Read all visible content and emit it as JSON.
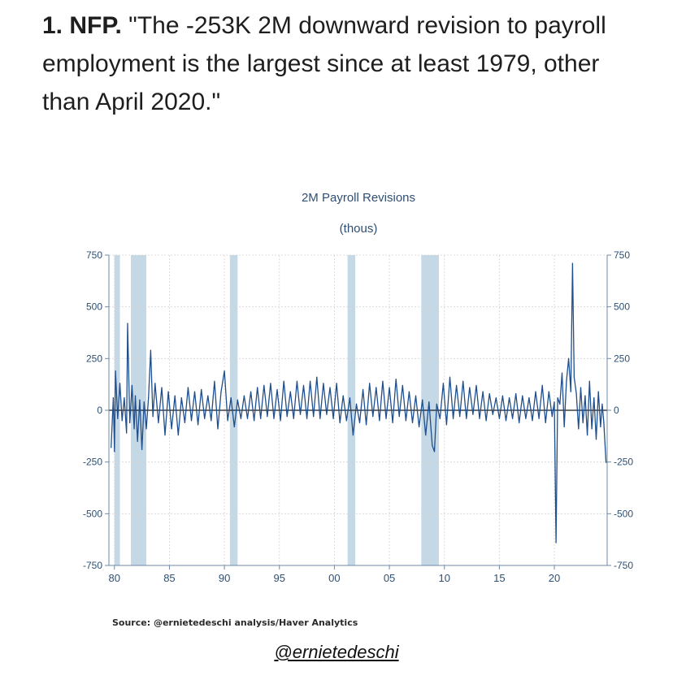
{
  "headline": {
    "bold": "1. NFP.",
    "text": "\"The -253K 2M downward revision to payroll employment is the largest since at least 1979, other than April 2020.\""
  },
  "chart_data": {
    "type": "line",
    "title": "2M Payroll Revisions",
    "subtitle": "(thous)",
    "xlabel": "",
    "ylabel": "",
    "xlim": [
      1979.5,
      2024.8
    ],
    "ylim": [
      -750,
      750
    ],
    "y_ticks": [
      750,
      500,
      250,
      0,
      -250,
      -500,
      -750
    ],
    "y_tick_labels": [
      "750",
      "500",
      "250",
      "0",
      "-250",
      "-500",
      "-750"
    ],
    "x_ticks": [
      1980,
      1985,
      1990,
      1995,
      2000,
      2005,
      2010,
      2015,
      2020
    ],
    "x_tick_labels": [
      "80",
      "85",
      "90",
      "95",
      "00",
      "05",
      "10",
      "15",
      "20"
    ],
    "recessions": [
      [
        1980.0,
        1980.5
      ],
      [
        1981.5,
        1982.9
      ],
      [
        1990.5,
        1991.2
      ],
      [
        2001.2,
        2001.9
      ],
      [
        2007.9,
        2009.5
      ]
    ],
    "series": [
      {
        "name": "2M Payroll Revisions",
        "color": "#1f4e8c",
        "points": [
          [
            1979.7,
            -180
          ],
          [
            1979.9,
            60
          ],
          [
            1980.0,
            -200
          ],
          [
            1980.1,
            190
          ],
          [
            1980.3,
            -40
          ],
          [
            1980.5,
            130
          ],
          [
            1980.7,
            -50
          ],
          [
            1980.9,
            60
          ],
          [
            1981.1,
            -110
          ],
          [
            1981.2,
            420
          ],
          [
            1981.4,
            -60
          ],
          [
            1981.6,
            120
          ],
          [
            1981.8,
            -90
          ],
          [
            1981.9,
            70
          ],
          [
            1982.1,
            -150
          ],
          [
            1982.3,
            50
          ],
          [
            1982.5,
            -190
          ],
          [
            1982.7,
            40
          ],
          [
            1982.9,
            -90
          ],
          [
            1983.1,
            60
          ],
          [
            1983.3,
            290
          ],
          [
            1983.5,
            -30
          ],
          [
            1983.7,
            130
          ],
          [
            1984.0,
            -60
          ],
          [
            1984.3,
            110
          ],
          [
            1984.6,
            -120
          ],
          [
            1984.9,
            90
          ],
          [
            1985.2,
            -90
          ],
          [
            1985.5,
            70
          ],
          [
            1985.8,
            -120
          ],
          [
            1986.1,
            60
          ],
          [
            1986.4,
            -60
          ],
          [
            1986.7,
            110
          ],
          [
            1987.0,
            -50
          ],
          [
            1987.3,
            90
          ],
          [
            1987.6,
            -70
          ],
          [
            1987.9,
            100
          ],
          [
            1988.2,
            -40
          ],
          [
            1988.5,
            70
          ],
          [
            1988.8,
            -50
          ],
          [
            1989.1,
            140
          ],
          [
            1989.4,
            -90
          ],
          [
            1989.7,
            90
          ],
          [
            1990.0,
            190
          ],
          [
            1990.3,
            -50
          ],
          [
            1990.6,
            60
          ],
          [
            1990.9,
            -80
          ],
          [
            1991.2,
            50
          ],
          [
            1991.5,
            -40
          ],
          [
            1991.8,
            70
          ],
          [
            1992.1,
            -40
          ],
          [
            1992.4,
            90
          ],
          [
            1992.7,
            -50
          ],
          [
            1993.0,
            110
          ],
          [
            1993.3,
            -40
          ],
          [
            1993.6,
            120
          ],
          [
            1993.9,
            -30
          ],
          [
            1994.2,
            130
          ],
          [
            1994.5,
            -40
          ],
          [
            1994.8,
            100
          ],
          [
            1995.1,
            -50
          ],
          [
            1995.4,
            140
          ],
          [
            1995.7,
            -30
          ],
          [
            1996.0,
            90
          ],
          [
            1996.3,
            -40
          ],
          [
            1996.6,
            140
          ],
          [
            1996.9,
            -20
          ],
          [
            1997.2,
            120
          ],
          [
            1997.5,
            -40
          ],
          [
            1997.8,
            140
          ],
          [
            1998.1,
            -30
          ],
          [
            1998.4,
            160
          ],
          [
            1998.7,
            -40
          ],
          [
            1999.0,
            130
          ],
          [
            1999.3,
            -20
          ],
          [
            1999.6,
            110
          ],
          [
            1999.9,
            -40
          ],
          [
            2000.2,
            130
          ],
          [
            2000.5,
            -60
          ],
          [
            2000.8,
            70
          ],
          [
            2001.1,
            -50
          ],
          [
            2001.4,
            60
          ],
          [
            2001.7,
            -120
          ],
          [
            2002.0,
            30
          ],
          [
            2002.3,
            -60
          ],
          [
            2002.6,
            100
          ],
          [
            2002.9,
            -70
          ],
          [
            2003.2,
            130
          ],
          [
            2003.5,
            -30
          ],
          [
            2003.8,
            110
          ],
          [
            2004.1,
            -50
          ],
          [
            2004.4,
            140
          ],
          [
            2004.7,
            -40
          ],
          [
            2005.0,
            110
          ],
          [
            2005.3,
            -60
          ],
          [
            2005.6,
            150
          ],
          [
            2005.9,
            -30
          ],
          [
            2006.2,
            120
          ],
          [
            2006.5,
            -50
          ],
          [
            2006.8,
            90
          ],
          [
            2007.1,
            -60
          ],
          [
            2007.4,
            70
          ],
          [
            2007.7,
            -80
          ],
          [
            2008.0,
            50
          ],
          [
            2008.3,
            -120
          ],
          [
            2008.6,
            40
          ],
          [
            2008.9,
            -170
          ],
          [
            2009.1,
            -200
          ],
          [
            2009.3,
            30
          ],
          [
            2009.6,
            -40
          ],
          [
            2009.9,
            130
          ],
          [
            2010.2,
            -70
          ],
          [
            2010.5,
            160
          ],
          [
            2010.8,
            -40
          ],
          [
            2011.1,
            120
          ],
          [
            2011.4,
            -30
          ],
          [
            2011.7,
            140
          ],
          [
            2012.0,
            -40
          ],
          [
            2012.3,
            110
          ],
          [
            2012.6,
            -20
          ],
          [
            2012.9,
            120
          ],
          [
            2013.2,
            -40
          ],
          [
            2013.5,
            90
          ],
          [
            2013.8,
            -50
          ],
          [
            2014.1,
            80
          ],
          [
            2014.4,
            -20
          ],
          [
            2014.7,
            60
          ],
          [
            2015.0,
            -40
          ],
          [
            2015.3,
            70
          ],
          [
            2015.6,
            -50
          ],
          [
            2015.9,
            60
          ],
          [
            2016.2,
            -40
          ],
          [
            2016.5,
            80
          ],
          [
            2016.8,
            -60
          ],
          [
            2017.1,
            70
          ],
          [
            2017.4,
            -40
          ],
          [
            2017.7,
            60
          ],
          [
            2018.0,
            -50
          ],
          [
            2018.3,
            90
          ],
          [
            2018.6,
            -40
          ],
          [
            2018.9,
            120
          ],
          [
            2019.2,
            -60
          ],
          [
            2019.5,
            90
          ],
          [
            2019.8,
            -30
          ],
          [
            2020.0,
            40
          ],
          [
            2020.15,
            -640
          ],
          [
            2020.3,
            60
          ],
          [
            2020.5,
            30
          ],
          [
            2020.7,
            180
          ],
          [
            2020.9,
            -80
          ],
          [
            2021.1,
            140
          ],
          [
            2021.3,
            250
          ],
          [
            2021.5,
            90
          ],
          [
            2021.65,
            710
          ],
          [
            2021.8,
            160
          ],
          [
            2022.0,
            80
          ],
          [
            2022.2,
            -90
          ],
          [
            2022.4,
            110
          ],
          [
            2022.6,
            -60
          ],
          [
            2022.8,
            70
          ],
          [
            2023.0,
            -120
          ],
          [
            2023.2,
            140
          ],
          [
            2023.4,
            -90
          ],
          [
            2023.6,
            60
          ],
          [
            2023.8,
            -140
          ],
          [
            2024.0,
            90
          ],
          [
            2024.2,
            -80
          ],
          [
            2024.35,
            30
          ],
          [
            2024.5,
            -60
          ],
          [
            2024.7,
            -253
          ]
        ]
      }
    ]
  },
  "source": "Source:  @ernietedeschi analysis/Haver Analytics",
  "handle": "@ernietedeschi"
}
